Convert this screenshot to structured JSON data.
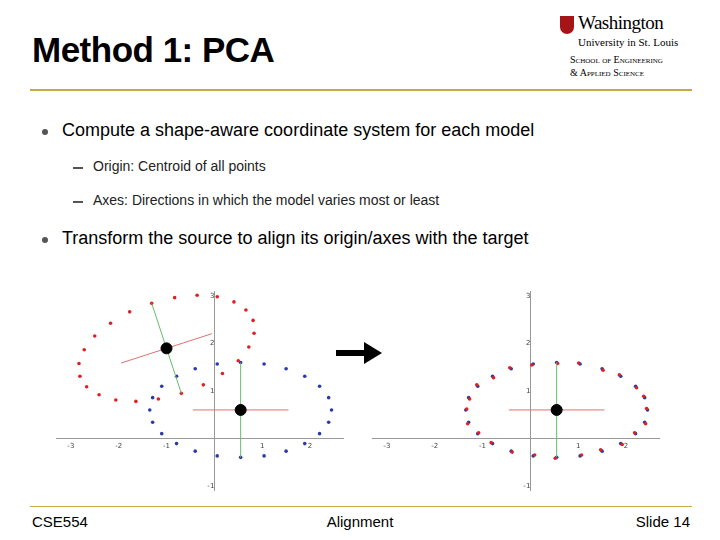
{
  "slide": {
    "title": "Method 1: PCA",
    "logo": [
      "Washington",
      "University in St. Louis",
      "School of Engineering",
      "& Applied Science"
    ],
    "bullets": [
      {
        "text": "Compute a shape-aware coordinate system for each model",
        "sub": [
          "Origin: Centroid of all points",
          "Axes: Directions in which the model varies most or least"
        ]
      },
      {
        "text": "Transform the source to align its origin/axes with the target",
        "sub": []
      }
    ],
    "footer": {
      "left": "CSE554",
      "center": "Alignment",
      "right": "Slide 14"
    }
  },
  "chart_data": [
    {
      "type": "scatter",
      "grid": false,
      "xlim": [
        -3.3,
        2.7
      ],
      "ylim": [
        -1.1,
        3.1
      ],
      "xticks": [
        -3,
        -2,
        -1,
        1,
        2
      ],
      "yticks": [
        -1,
        1,
        2,
        3
      ],
      "series": [
        {
          "color": "#e02020",
          "marker": "circle",
          "x": [
            0.81,
            0.66,
            0.41,
            0.06,
            -0.36,
            -0.83,
            -1.31,
            -1.77,
            -2.17,
            -2.5,
            -2.72,
            -2.83,
            -2.81,
            -2.67,
            -2.41,
            -2.06,
            -1.64,
            -1.17,
            -0.69,
            -0.23,
            0.17,
            0.5,
            0.72,
            0.83
          ],
          "values": [
            2.49,
            2.71,
            2.88,
            2.99,
            3.02,
            2.97,
            2.85,
            2.67,
            2.43,
            2.16,
            1.87,
            1.58,
            1.31,
            1.09,
            0.92,
            0.81,
            0.78,
            0.83,
            0.95,
            1.13,
            1.37,
            1.64,
            1.93,
            2.22
          ],
          "centroid": [
            -1.0,
            1.9
          ],
          "pca_axes": [
            {
              "color": "#e07070",
              "from": [
                -1.95,
                1.59
              ],
              "to": [
                -0.05,
                2.21
              ]
            },
            {
              "color": "#66bb66",
              "from": [
                -0.69,
                0.95
              ],
              "to": [
                -1.31,
                2.85
              ]
            }
          ]
        },
        {
          "color": "#2a3aa8",
          "marker": "circle",
          "x": [
            2.45,
            2.39,
            2.2,
            1.89,
            1.5,
            1.04,
            0.55,
            0.06,
            -0.4,
            -0.79,
            -1.1,
            -1.29,
            -1.35,
            -1.29,
            -1.1,
            -0.79,
            -0.4,
            0.06,
            0.55,
            1.04,
            1.5,
            1.89,
            2.2,
            2.39
          ],
          "values": [
            0.6,
            0.86,
            1.1,
            1.31,
            1.47,
            1.57,
            1.6,
            1.57,
            1.47,
            1.31,
            1.1,
            0.86,
            0.6,
            0.34,
            0.1,
            -0.11,
            -0.27,
            -0.37,
            -0.4,
            -0.37,
            -0.27,
            -0.11,
            0.1,
            0.34
          ],
          "centroid": [
            0.55,
            0.6
          ],
          "pca_axes": [
            {
              "color": "#e07070",
              "from": [
                -0.45,
                0.6
              ],
              "to": [
                1.55,
                0.6
              ]
            },
            {
              "color": "#66bb66",
              "from": [
                0.55,
                -0.4
              ],
              "to": [
                0.55,
                1.6
              ]
            }
          ]
        }
      ]
    },
    {
      "type": "scatter",
      "grid": false,
      "xlim": [
        -3.3,
        2.7
      ],
      "ylim": [
        -1.1,
        3.1
      ],
      "xticks": [
        -3,
        -2,
        -1,
        1,
        2
      ],
      "yticks": [
        -1,
        1,
        2,
        3
      ],
      "series": [
        {
          "color": "#e02020",
          "marker": "circle",
          "x": [
            2.43,
            2.37,
            2.22,
            1.86,
            1.52,
            1.01,
            0.57,
            0.03,
            -0.43,
            -0.77,
            -1.12,
            -1.27,
            -1.33,
            -1.31,
            -1.08,
            -0.82,
            -0.38,
            0.09,
            0.52,
            1.07,
            1.47,
            1.92,
            2.18,
            2.41
          ],
          "values": [
            0.63,
            0.89,
            1.07,
            1.34,
            1.44,
            1.59,
            1.58,
            1.55,
            1.49,
            1.28,
            1.13,
            0.83,
            0.62,
            0.31,
            0.12,
            -0.09,
            -0.29,
            -0.35,
            -0.42,
            -0.35,
            -0.24,
            -0.13,
            0.12,
            0.31
          ]
        },
        {
          "color": "#2a3aa8",
          "marker": "circle",
          "x": [
            2.45,
            2.39,
            2.2,
            1.89,
            1.5,
            1.04,
            0.55,
            0.06,
            -0.4,
            -0.79,
            -1.1,
            -1.29,
            -1.35,
            -1.29,
            -1.1,
            -0.79,
            -0.4,
            0.06,
            0.55,
            1.04,
            1.5,
            1.89,
            2.2,
            2.39
          ],
          "values": [
            0.6,
            0.86,
            1.1,
            1.31,
            1.47,
            1.57,
            1.6,
            1.57,
            1.47,
            1.31,
            1.1,
            0.86,
            0.6,
            0.34,
            0.1,
            -0.11,
            -0.27,
            -0.37,
            -0.4,
            -0.37,
            -0.27,
            -0.11,
            0.1,
            0.34
          ],
          "centroid": [
            0.55,
            0.6
          ],
          "pca_axes": [
            {
              "color": "#e07070",
              "from": [
                -0.45,
                0.6
              ],
              "to": [
                1.55,
                0.6
              ]
            },
            {
              "color": "#66bb66",
              "from": [
                0.55,
                -0.4
              ],
              "to": [
                0.55,
                1.6
              ]
            }
          ]
        }
      ]
    }
  ]
}
